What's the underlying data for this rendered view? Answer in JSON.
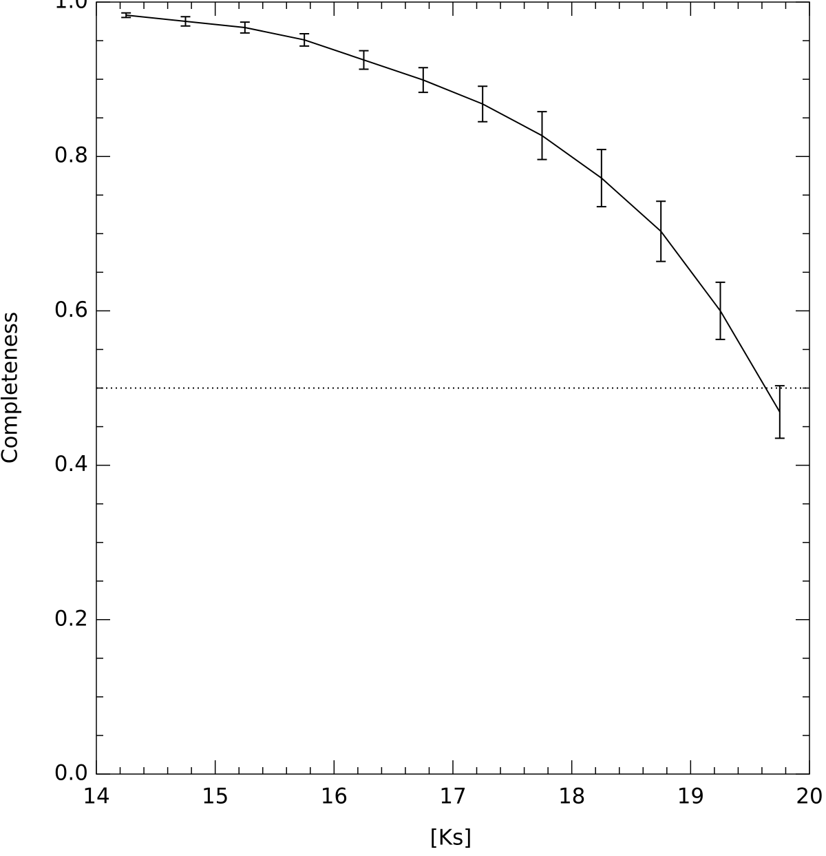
{
  "chart_data": {
    "type": "errorbar",
    "x_label": "[Ks]",
    "y_label": "Completeness",
    "x": [
      14.25,
      14.75,
      15.25,
      15.75,
      16.25,
      16.75,
      17.25,
      17.75,
      18.25,
      18.75,
      19.25,
      19.75
    ],
    "values": [
      0.983,
      0.975,
      0.967,
      0.951,
      0.925,
      0.899,
      0.868,
      0.827,
      0.772,
      0.703,
      0.6,
      0.469
    ],
    "errors": [
      0.003,
      0.006,
      0.007,
      0.008,
      0.012,
      0.016,
      0.023,
      0.031,
      0.037,
      0.039,
      0.037,
      0.034
    ],
    "color": "#000000",
    "hline": 0.5,
    "xlim": [
      14,
      20
    ],
    "xticks": [
      14,
      15,
      16,
      17,
      18,
      19,
      20
    ],
    "xminor": 5,
    "ylim": [
      0,
      1
    ],
    "yticks": [
      {
        "value": 0,
        "label": "0.0"
      },
      0.2,
      0.4,
      0.6,
      0.8,
      {
        "value": 1,
        "label": "1.0"
      }
    ],
    "yminor": 4
  }
}
